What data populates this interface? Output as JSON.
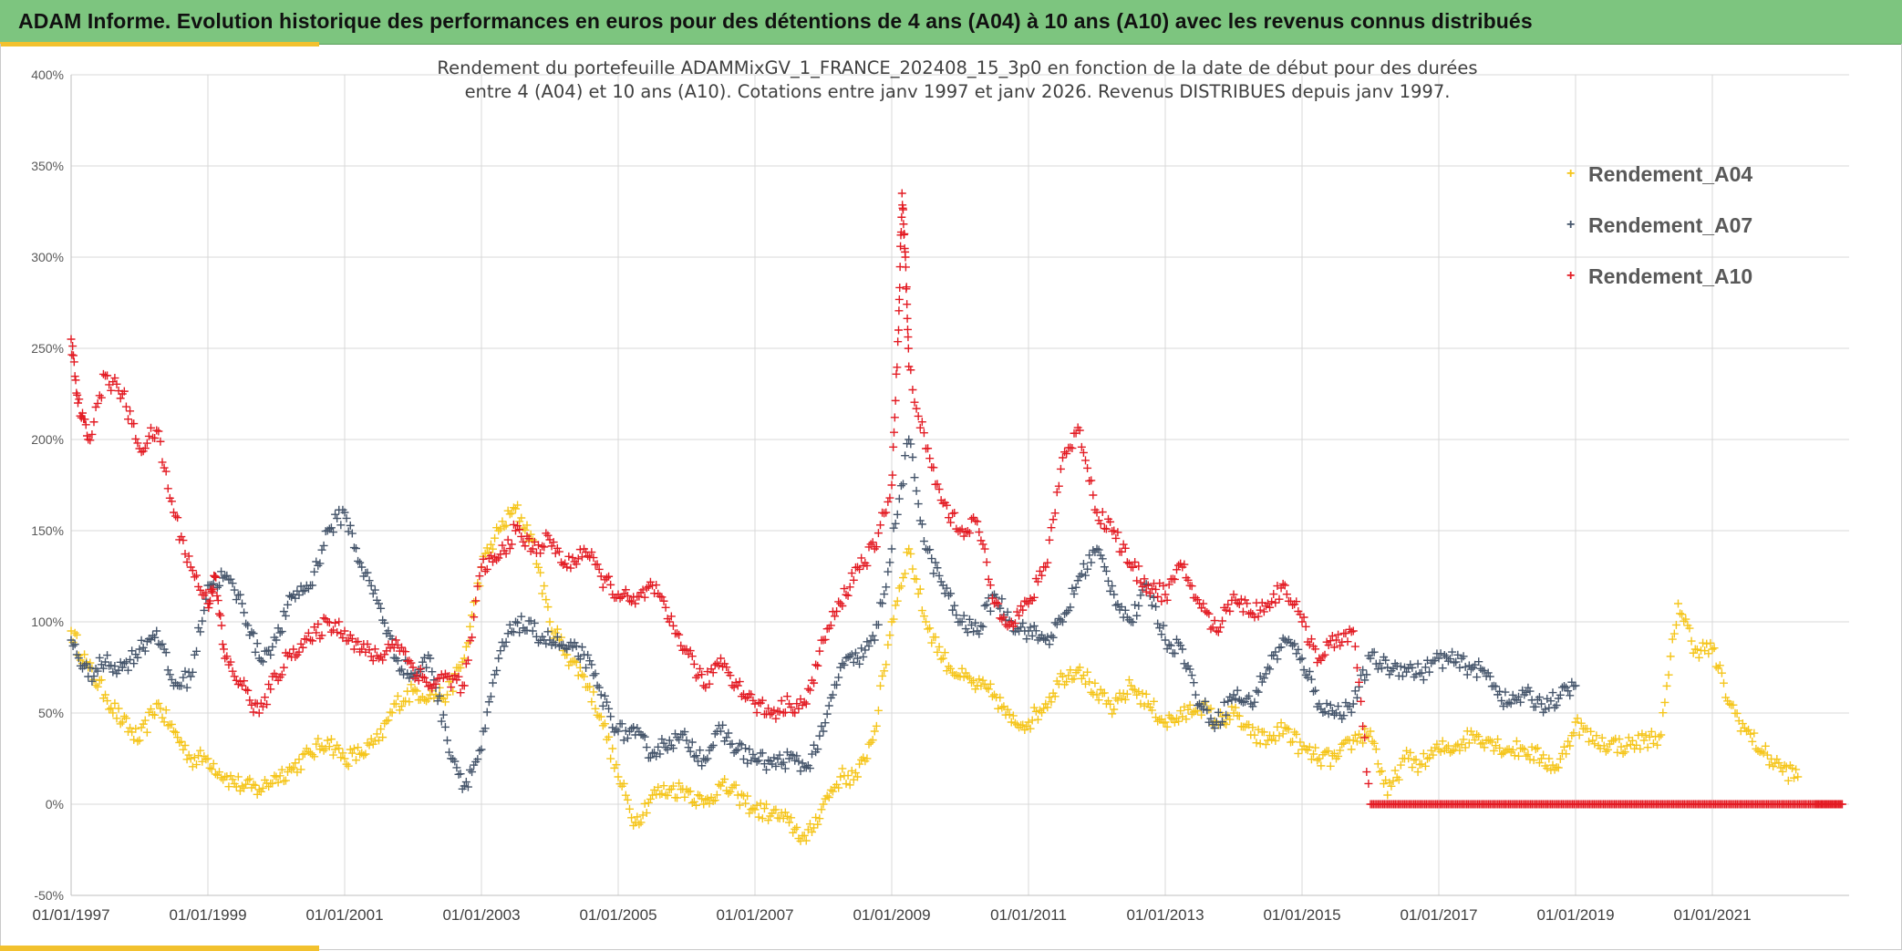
{
  "header": {
    "title": "ADAM Informe. Evolution historique des performances en euros pour des détentions de 4 ans (A04) à 10 ans (A10) avec les revenus connus distribués"
  },
  "colors": {
    "banner": "#7dc57f",
    "accent": "#f2c12e",
    "grid": "#d9d9d9",
    "axis": "#bfbfbf"
  },
  "chart_data": {
    "type": "scatter",
    "marker": "+",
    "title_lines": [
      "Rendement du portefeuille ADAMMixGV_1_FRANCE_202408_15_3p0  en fonction de la date de début pour des durées",
      "entre 4 (A04) et 10 ans (A10). Cotations entre janv 1997 et janv 2026. Revenus DISTRIBUES depuis janv 1997."
    ],
    "xlabel": "",
    "ylabel": "",
    "x_unit": "year (decimal)",
    "xlim": [
      1997.0,
      2023.0
    ],
    "ylim": [
      -50,
      400
    ],
    "yticks": [
      -50,
      0,
      50,
      100,
      150,
      200,
      250,
      300,
      350,
      400
    ],
    "ytick_labels": [
      "-50%",
      "0%",
      "50%",
      "100%",
      "150%",
      "200%",
      "250%",
      "300%",
      "350%",
      "400%"
    ],
    "xticks": [
      1997,
      1999,
      2001,
      2003,
      2005,
      2007,
      2009,
      2011,
      2013,
      2015,
      2017,
      2019,
      2021
    ],
    "xtick_labels": [
      "01/01/1997",
      "01/01/1999",
      "01/01/2001",
      "01/01/2003",
      "01/01/2005",
      "01/01/2007",
      "01/01/2009",
      "01/01/2011",
      "01/01/2013",
      "01/01/2015",
      "01/01/2017",
      "01/01/2019",
      "01/01/2021"
    ],
    "legend_position": "top-right",
    "series": [
      {
        "name": "Rendement_A04",
        "color": "#f5c51a",
        "points": [
          [
            1997.0,
            95
          ],
          [
            1997.25,
            75
          ],
          [
            1997.5,
            60
          ],
          [
            1997.75,
            45
          ],
          [
            1998.0,
            35
          ],
          [
            1998.25,
            55
          ],
          [
            1998.5,
            40
          ],
          [
            1998.75,
            25
          ],
          [
            1999.0,
            25
          ],
          [
            1999.25,
            15
          ],
          [
            1999.5,
            10
          ],
          [
            1999.75,
            8
          ],
          [
            2000.0,
            15
          ],
          [
            2000.25,
            20
          ],
          [
            2000.5,
            28
          ],
          [
            2000.75,
            35
          ],
          [
            2001.0,
            25
          ],
          [
            2001.25,
            28
          ],
          [
            2001.5,
            35
          ],
          [
            2001.75,
            55
          ],
          [
            2002.0,
            62
          ],
          [
            2002.25,
            60
          ],
          [
            2002.5,
            60
          ],
          [
            2002.75,
            80
          ],
          [
            2003.0,
            130
          ],
          [
            2003.25,
            150
          ],
          [
            2003.5,
            162
          ],
          [
            2003.75,
            145
          ],
          [
            2004.0,
            100
          ],
          [
            2004.25,
            82
          ],
          [
            2004.5,
            70
          ],
          [
            2004.75,
            48
          ],
          [
            2005.0,
            15
          ],
          [
            2005.25,
            -10
          ],
          [
            2005.5,
            5
          ],
          [
            2005.75,
            8
          ],
          [
            2006.0,
            8
          ],
          [
            2006.25,
            0
          ],
          [
            2006.5,
            10
          ],
          [
            2006.75,
            5
          ],
          [
            2007.0,
            -3
          ],
          [
            2007.25,
            -5
          ],
          [
            2007.5,
            -10
          ],
          [
            2007.75,
            -20
          ],
          [
            2008.0,
            0
          ],
          [
            2008.25,
            15
          ],
          [
            2008.5,
            15
          ],
          [
            2008.75,
            40
          ],
          [
            2009.0,
            100
          ],
          [
            2009.25,
            140
          ],
          [
            2009.5,
            100
          ],
          [
            2009.75,
            80
          ],
          [
            2010.0,
            70
          ],
          [
            2010.25,
            65
          ],
          [
            2010.5,
            60
          ],
          [
            2010.75,
            45
          ],
          [
            2011.0,
            45
          ],
          [
            2011.25,
            55
          ],
          [
            2011.5,
            70
          ],
          [
            2011.75,
            75
          ],
          [
            2012.0,
            60
          ],
          [
            2012.25,
            52
          ],
          [
            2012.5,
            65
          ],
          [
            2012.75,
            55
          ],
          [
            2013.0,
            45
          ],
          [
            2013.25,
            48
          ],
          [
            2013.5,
            55
          ],
          [
            2013.75,
            45
          ],
          [
            2014.0,
            50
          ],
          [
            2014.25,
            38
          ],
          [
            2014.5,
            35
          ],
          [
            2014.75,
            42
          ],
          [
            2015.0,
            30
          ],
          [
            2015.25,
            25
          ],
          [
            2015.5,
            25
          ],
          [
            2015.75,
            35
          ],
          [
            2016.0,
            40
          ],
          [
            2016.25,
            5
          ],
          [
            2016.5,
            25
          ],
          [
            2016.75,
            22
          ],
          [
            2017.0,
            30
          ],
          [
            2017.25,
            32
          ],
          [
            2017.5,
            38
          ],
          [
            2017.75,
            35
          ],
          [
            2018.0,
            30
          ],
          [
            2018.25,
            30
          ],
          [
            2018.5,
            25
          ],
          [
            2018.75,
            20
          ],
          [
            2019.0,
            45
          ],
          [
            2019.25,
            35
          ],
          [
            2019.5,
            33
          ],
          [
            2019.75,
            32
          ],
          [
            2020.0,
            35
          ],
          [
            2020.25,
            38
          ],
          [
            2020.5,
            110
          ],
          [
            2020.75,
            85
          ],
          [
            2021.0,
            85
          ],
          [
            2021.25,
            55
          ],
          [
            2021.5,
            40
          ],
          [
            2021.75,
            28
          ],
          [
            2022.0,
            20
          ],
          [
            2022.25,
            15
          ]
        ]
      },
      {
        "name": "Rendement_A07",
        "color": "#44546a",
        "points": [
          [
            1997.0,
            90
          ],
          [
            1997.25,
            70
          ],
          [
            1997.5,
            78
          ],
          [
            1997.75,
            75
          ],
          [
            1998.0,
            85
          ],
          [
            1998.25,
            95
          ],
          [
            1998.5,
            65
          ],
          [
            1998.75,
            70
          ],
          [
            1999.0,
            120
          ],
          [
            1999.25,
            125
          ],
          [
            1999.5,
            110
          ],
          [
            1999.75,
            80
          ],
          [
            2000.0,
            90
          ],
          [
            2000.25,
            115
          ],
          [
            2000.5,
            120
          ],
          [
            2000.75,
            150
          ],
          [
            2001.0,
            160
          ],
          [
            2001.25,
            130
          ],
          [
            2001.5,
            110
          ],
          [
            2001.75,
            80
          ],
          [
            2002.0,
            70
          ],
          [
            2002.25,
            80
          ],
          [
            2002.5,
            35
          ],
          [
            2002.75,
            10
          ],
          [
            2003.0,
            30
          ],
          [
            2003.25,
            80
          ],
          [
            2003.5,
            100
          ],
          [
            2003.75,
            95
          ],
          [
            2004.0,
            90
          ],
          [
            2004.25,
            85
          ],
          [
            2004.5,
            82
          ],
          [
            2004.75,
            60
          ],
          [
            2005.0,
            40
          ],
          [
            2005.25,
            38
          ],
          [
            2005.5,
            28
          ],
          [
            2005.75,
            35
          ],
          [
            2006.0,
            35
          ],
          [
            2006.25,
            25
          ],
          [
            2006.5,
            40
          ],
          [
            2006.75,
            30
          ],
          [
            2007.0,
            25
          ],
          [
            2007.25,
            22
          ],
          [
            2007.5,
            25
          ],
          [
            2007.75,
            20
          ],
          [
            2008.0,
            40
          ],
          [
            2008.25,
            75
          ],
          [
            2008.5,
            80
          ],
          [
            2008.75,
            90
          ],
          [
            2009.0,
            140
          ],
          [
            2009.25,
            200
          ],
          [
            2009.5,
            140
          ],
          [
            2009.75,
            120
          ],
          [
            2010.0,
            100
          ],
          [
            2010.25,
            95
          ],
          [
            2010.5,
            115
          ],
          [
            2010.75,
            100
          ],
          [
            2011.0,
            95
          ],
          [
            2011.25,
            90
          ],
          [
            2011.5,
            100
          ],
          [
            2011.75,
            125
          ],
          [
            2012.0,
            140
          ],
          [
            2012.25,
            115
          ],
          [
            2012.5,
            100
          ],
          [
            2012.75,
            120
          ],
          [
            2013.0,
            90
          ],
          [
            2013.25,
            85
          ],
          [
            2013.5,
            55
          ],
          [
            2013.75,
            45
          ],
          [
            2014.0,
            60
          ],
          [
            2014.25,
            55
          ],
          [
            2014.5,
            75
          ],
          [
            2014.75,
            90
          ],
          [
            2015.0,
            80
          ],
          [
            2015.25,
            55
          ],
          [
            2015.5,
            50
          ],
          [
            2015.75,
            55
          ],
          [
            2016.0,
            80
          ],
          [
            2016.25,
            75
          ],
          [
            2016.5,
            75
          ],
          [
            2016.75,
            72
          ],
          [
            2017.0,
            80
          ],
          [
            2017.25,
            78
          ],
          [
            2017.5,
            75
          ],
          [
            2017.75,
            70
          ],
          [
            2018.0,
            55
          ],
          [
            2018.25,
            60
          ],
          [
            2018.5,
            55
          ],
          [
            2018.75,
            58
          ],
          [
            2019.0,
            65
          ]
        ]
      },
      {
        "name": "Rendement_A10",
        "color": "#e31b23",
        "points": [
          [
            1997.0,
            255
          ],
          [
            1997.1,
            220
          ],
          [
            1997.25,
            200
          ],
          [
            1997.5,
            235
          ],
          [
            1997.75,
            225
          ],
          [
            1998.0,
            195
          ],
          [
            1998.25,
            205
          ],
          [
            1998.5,
            160
          ],
          [
            1998.75,
            130
          ],
          [
            1999.0,
            110
          ],
          [
            1999.1,
            125
          ],
          [
            1999.25,
            80
          ],
          [
            1999.5,
            65
          ],
          [
            1999.75,
            50
          ],
          [
            2000.0,
            70
          ],
          [
            2000.25,
            85
          ],
          [
            2000.5,
            90
          ],
          [
            2000.75,
            100
          ],
          [
            2001.0,
            95
          ],
          [
            2001.25,
            85
          ],
          [
            2001.5,
            80
          ],
          [
            2001.75,
            90
          ],
          [
            2002.0,
            75
          ],
          [
            2002.25,
            65
          ],
          [
            2002.5,
            70
          ],
          [
            2002.75,
            65
          ],
          [
            2003.0,
            130
          ],
          [
            2003.25,
            135
          ],
          [
            2003.5,
            150
          ],
          [
            2003.75,
            140
          ],
          [
            2004.0,
            145
          ],
          [
            2004.25,
            130
          ],
          [
            2004.5,
            140
          ],
          [
            2004.75,
            125
          ],
          [
            2005.0,
            115
          ],
          [
            2005.25,
            110
          ],
          [
            2005.5,
            120
          ],
          [
            2005.75,
            100
          ],
          [
            2006.0,
            85
          ],
          [
            2006.25,
            65
          ],
          [
            2006.5,
            80
          ],
          [
            2006.75,
            65
          ],
          [
            2007.0,
            55
          ],
          [
            2007.25,
            50
          ],
          [
            2007.5,
            55
          ],
          [
            2007.75,
            55
          ],
          [
            2008.0,
            90
          ],
          [
            2008.25,
            110
          ],
          [
            2008.5,
            130
          ],
          [
            2008.75,
            140
          ],
          [
            2009.0,
            175
          ],
          [
            2009.1,
            260
          ],
          [
            2009.15,
            335
          ],
          [
            2009.2,
            300
          ],
          [
            2009.25,
            240
          ],
          [
            2009.5,
            195
          ],
          [
            2009.75,
            165
          ],
          [
            2010.0,
            150
          ],
          [
            2010.25,
            155
          ],
          [
            2010.5,
            110
          ],
          [
            2010.75,
            100
          ],
          [
            2011.0,
            110
          ],
          [
            2011.25,
            130
          ],
          [
            2011.5,
            190
          ],
          [
            2011.75,
            205
          ],
          [
            2012.0,
            160
          ],
          [
            2012.25,
            150
          ],
          [
            2012.5,
            130
          ],
          [
            2012.75,
            120
          ],
          [
            2013.0,
            115
          ],
          [
            2013.25,
            130
          ],
          [
            2013.5,
            110
          ],
          [
            2013.75,
            95
          ],
          [
            2014.0,
            115
          ],
          [
            2014.25,
            105
          ],
          [
            2014.5,
            110
          ],
          [
            2014.75,
            120
          ],
          [
            2015.0,
            100
          ],
          [
            2015.25,
            80
          ],
          [
            2015.5,
            90
          ],
          [
            2015.75,
            95
          ],
          [
            2016.0,
            0
          ],
          [
            2016.5,
            0
          ],
          [
            2017.0,
            0
          ],
          [
            2017.5,
            0
          ],
          [
            2018.0,
            0
          ],
          [
            2018.5,
            0
          ],
          [
            2019.0,
            0
          ],
          [
            2019.5,
            0
          ],
          [
            2020.0,
            0
          ],
          [
            2020.5,
            0
          ],
          [
            2021.0,
            0
          ],
          [
            2021.5,
            0
          ],
          [
            2022.0,
            0
          ],
          [
            2022.5,
            0
          ],
          [
            2022.9,
            0
          ]
        ]
      }
    ]
  }
}
